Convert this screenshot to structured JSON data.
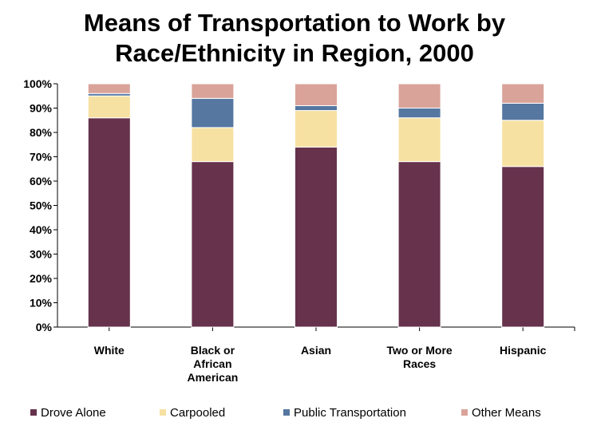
{
  "chart_data": {
    "type": "bar",
    "stacked": true,
    "title_lines": [
      "Means of Transportation to Work by",
      "Race/Ethnicity in Region, 2000"
    ],
    "categories": [
      [
        "White"
      ],
      [
        "Black or",
        "African",
        "American"
      ],
      [
        "Asian"
      ],
      [
        "Two or More",
        "Races"
      ],
      [
        "Hispanic"
      ]
    ],
    "y_ticks": [
      "0%",
      "10%",
      "20%",
      "30%",
      "40%",
      "50%",
      "60%",
      "70%",
      "80%",
      "90%",
      "100%"
    ],
    "ylim": [
      0,
      100
    ],
    "grid": false,
    "legend_position": "bottom",
    "series": [
      {
        "name": "Drove Alone",
        "color": "#66324c",
        "values": [
          86,
          68,
          74,
          68,
          66
        ]
      },
      {
        "name": "Carpooled",
        "color": "#f7e1a2",
        "values": [
          9,
          14,
          15,
          18,
          19
        ]
      },
      {
        "name": "Public Transportation",
        "color": "#5577a0",
        "values": [
          1,
          12,
          2,
          4,
          7
        ]
      },
      {
        "name": "Other Means",
        "color": "#d9a39a",
        "values": [
          4,
          6,
          9,
          10,
          8
        ]
      }
    ]
  }
}
